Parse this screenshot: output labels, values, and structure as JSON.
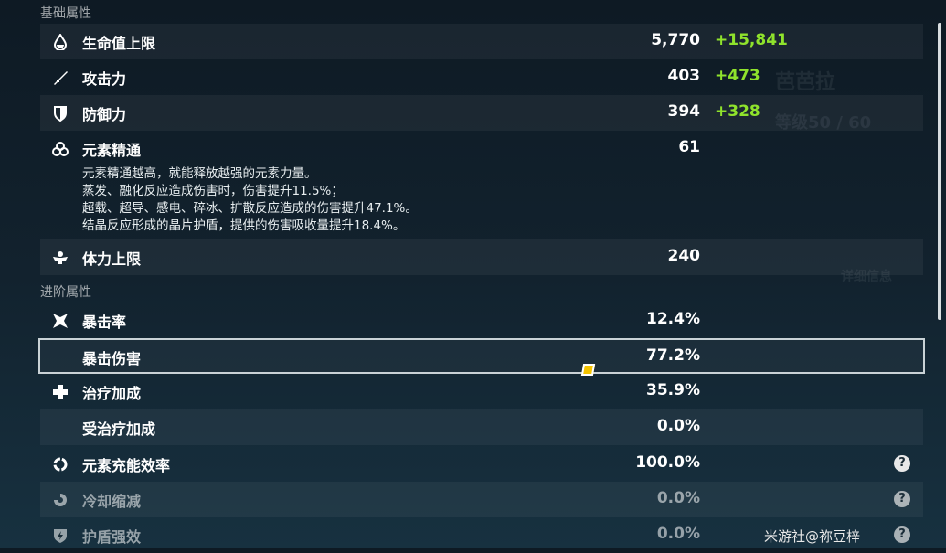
{
  "basic_section": "基础属性",
  "advanced_section": "进阶属性",
  "basic": [
    {
      "icon": "hp-drop-icon",
      "label": "生命值上限",
      "value": "5,770",
      "bonus": "+15,841"
    },
    {
      "icon": "sword-icon",
      "label": "攻击力",
      "value": "403",
      "bonus": "+473"
    },
    {
      "icon": "shield-icon",
      "label": "防御力",
      "value": "394",
      "bonus": "+328"
    },
    {
      "icon": "elemental-mastery-icon",
      "label": "元素精通",
      "value": "61",
      "desc": [
        "元素精通越高，就能释放越强的元素力量。",
        "蒸发、融化反应造成伤害时，伤害提升11.5%；",
        "超载、超导、感电、碎冰、扩散反应造成的伤害提升47.1%。",
        "结晶反应形成的晶片护盾，提供的伤害吸收量提升18.4%。"
      ]
    },
    {
      "icon": "stamina-icon",
      "label": "体力上限",
      "value": "240"
    }
  ],
  "advanced": [
    {
      "icon": "crit-star-icon",
      "label": "暴击率",
      "value": "12.4%"
    },
    {
      "icon": "",
      "label": "暴击伤害",
      "value": "77.2%",
      "selected": true
    },
    {
      "icon": "healing-cross-icon",
      "label": "治疗加成",
      "value": "35.9%"
    },
    {
      "icon": "",
      "label": "受治疗加成",
      "value": "0.0%"
    },
    {
      "icon": "energy-ring-icon",
      "label": "元素充能效率",
      "value": "100.0%",
      "help": "?"
    },
    {
      "icon": "cooldown-icon",
      "label": "冷却缩减",
      "value": "0.0%",
      "help": "?"
    },
    {
      "icon": "shield-bolt-icon",
      "label": "护盾强效",
      "value": "0.0%",
      "help": "?"
    }
  ],
  "background": {
    "character_name": "芭芭拉",
    "level": "等级50 / 60",
    "details": "详细信息"
  },
  "watermark": "米游社@祢豆梓",
  "colors": {
    "bonus": "#8fe32c",
    "cursor": "#f5c400"
  }
}
